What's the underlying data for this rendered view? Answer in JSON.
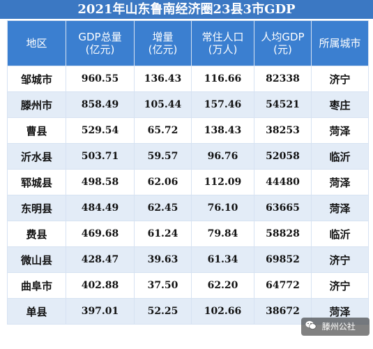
{
  "chart_data": {
    "type": "table",
    "title": "2021年山东鲁南经济圈23县3市GDP",
    "columns": [
      [
        "地区"
      ],
      [
        "GDP总量",
        "(亿元)"
      ],
      [
        "增量",
        "(亿元)"
      ],
      [
        "常住人口",
        "(万人)"
      ],
      [
        "人均GDP",
        "(元)"
      ],
      [
        "所属城市"
      ]
    ],
    "rows": [
      [
        "邹城市",
        "960.55",
        "136.43",
        "116.66",
        "82338",
        "济宁"
      ],
      [
        "滕州市",
        "858.49",
        "105.44",
        "157.46",
        "54521",
        "枣庄"
      ],
      [
        "曹县",
        "529.54",
        "65.72",
        "138.43",
        "38253",
        "菏泽"
      ],
      [
        "沂水县",
        "503.71",
        "59.57",
        "96.76",
        "52058",
        "临沂"
      ],
      [
        "郓城县",
        "498.58",
        "62.06",
        "112.09",
        "44480",
        "菏泽"
      ],
      [
        "东明县",
        "484.49",
        "62.45",
        "76.10",
        "63665",
        "菏泽"
      ],
      [
        "费县",
        "469.68",
        "61.24",
        "79.84",
        "58828",
        "临沂"
      ],
      [
        "微山县",
        "428.47",
        "39.63",
        "61.34",
        "69852",
        "济宁"
      ],
      [
        "曲阜市",
        "402.88",
        "37.50",
        "62.20",
        "64772",
        "济宁"
      ],
      [
        "单县",
        "397.01",
        "52.25",
        "102.66",
        "38672",
        "菏泽"
      ]
    ]
  },
  "watermark": {
    "text": "滕州公社",
    "icon": "wechat-icon"
  },
  "colors": {
    "title_bar": "#3b78c3",
    "header": "#3b7fd0",
    "row_alt": "#e3ecf7"
  }
}
